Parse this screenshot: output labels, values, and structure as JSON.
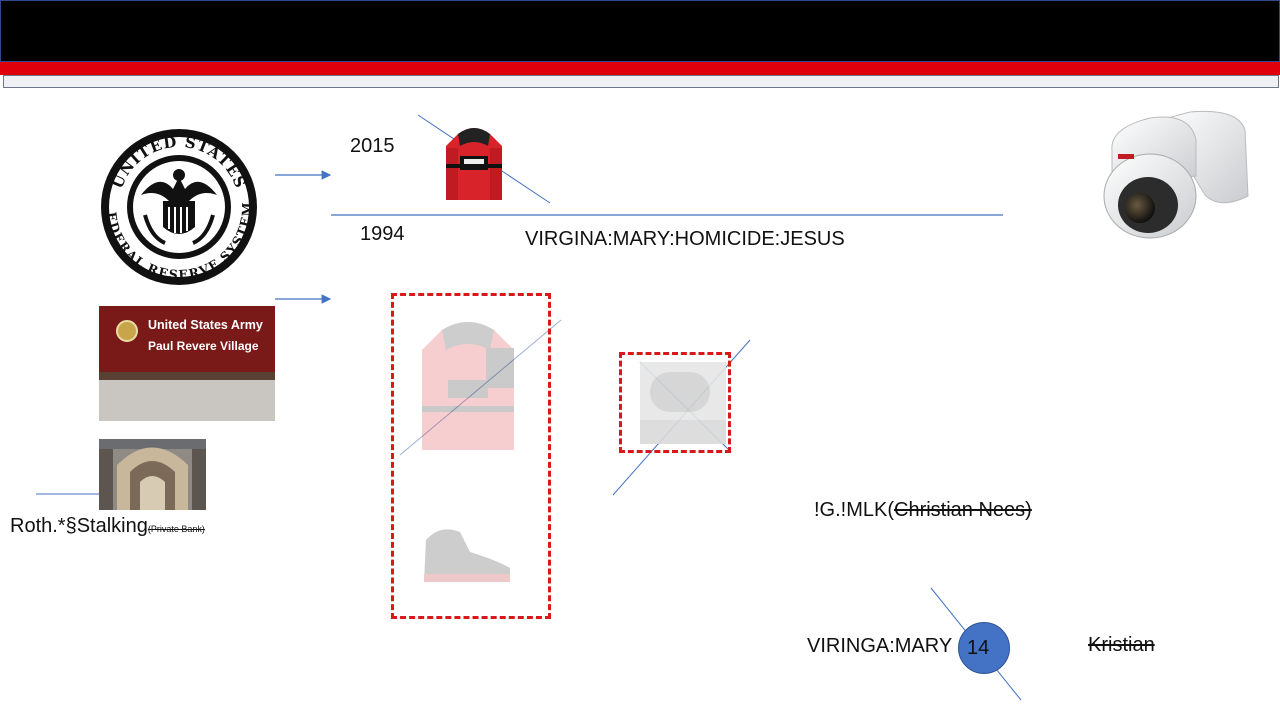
{
  "slide": {
    "years": {
      "top": "2015",
      "bottom": "1994"
    },
    "headline": "VIRGINA:MARY:HOMICIDE:JESUS",
    "seal": {
      "ring_text_top": "UNITED STATES",
      "ring_text_bottom": "FEDERAL RESERVE SYSTEM"
    },
    "army_sign": {
      "line1": "United States Army",
      "line2": "Paul Revere Village"
    },
    "roth_label": {
      "main": "Roth.*§Stalking",
      "sub": "(Private Bank)"
    },
    "mlk_label": {
      "prefix": "!G.!MLK(",
      "struck": "Christian Nees)"
    },
    "bottom_label": {
      "text": "VIRINGA:MARY",
      "badge": "14",
      "struck": "Kristian"
    },
    "colors": {
      "header_black": "#000000",
      "header_red": "#e0000b",
      "connector_blue": "#4472c4",
      "dashed_red": "#d8191b",
      "badge_fill": "#4472c4"
    }
  }
}
